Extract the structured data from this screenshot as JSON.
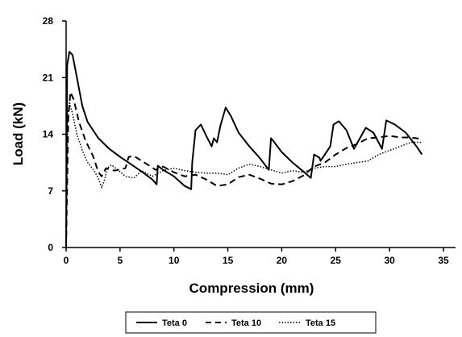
{
  "chart_data": {
    "type": "line",
    "xlabel": "Compression (mm)",
    "ylabel": "Load (kN)",
    "xlim": [
      0,
      35
    ],
    "ylim": [
      0,
      28
    ],
    "xticks": [
      0,
      5,
      10,
      15,
      20,
      25,
      30,
      35
    ],
    "yticks": [
      0,
      7,
      14,
      21,
      28
    ],
    "grid": false,
    "legend_position": "bottom",
    "series": [
      {
        "name": "Teta 0",
        "style": "solid",
        "color": "#000000",
        "points": [
          [
            0,
            0
          ],
          [
            0.1,
            22.5
          ],
          [
            0.3,
            24.2
          ],
          [
            0.6,
            23.8
          ],
          [
            1,
            21
          ],
          [
            1.5,
            17.5
          ],
          [
            2,
            15.5
          ],
          [
            3,
            13.5
          ],
          [
            4,
            12.2
          ],
          [
            5,
            11.2
          ],
          [
            6,
            10.3
          ],
          [
            7,
            9.4
          ],
          [
            8,
            8.4
          ],
          [
            8.4,
            7.8
          ],
          [
            8.5,
            10.1
          ],
          [
            9,
            9.6
          ],
          [
            10,
            8.8
          ],
          [
            11,
            7.6
          ],
          [
            11.6,
            7.2
          ],
          [
            11.7,
            10.5
          ],
          [
            12,
            14.5
          ],
          [
            12.5,
            15.2
          ],
          [
            13,
            13.8
          ],
          [
            13.5,
            12.5
          ],
          [
            13.7,
            13.5
          ],
          [
            14,
            13
          ],
          [
            14.3,
            15
          ],
          [
            14.8,
            17.3
          ],
          [
            15.3,
            16.2
          ],
          [
            16,
            14.2
          ],
          [
            17,
            12.5
          ],
          [
            18,
            11
          ],
          [
            18.8,
            9.6
          ],
          [
            19,
            13.5
          ],
          [
            19.2,
            13.2
          ],
          [
            20,
            11.8
          ],
          [
            21,
            10.5
          ],
          [
            22,
            9.4
          ],
          [
            22.7,
            8.6
          ],
          [
            23,
            11.5
          ],
          [
            23.5,
            11.1
          ],
          [
            23.6,
            10.7
          ],
          [
            24.5,
            12.5
          ],
          [
            24.8,
            15.2
          ],
          [
            25.3,
            15.6
          ],
          [
            26,
            14.5
          ],
          [
            26.7,
            12.2
          ],
          [
            27.8,
            14.8
          ],
          [
            28.5,
            14.2
          ],
          [
            29.3,
            12.2
          ],
          [
            29.7,
            15.7
          ],
          [
            30.5,
            15.2
          ],
          [
            31.5,
            14.2
          ],
          [
            32.5,
            12.5
          ],
          [
            33,
            11.5
          ]
        ]
      },
      {
        "name": "Teta 10",
        "style": "dashed",
        "color": "#000000",
        "points": [
          [
            0,
            0
          ],
          [
            0.2,
            16
          ],
          [
            0.4,
            19.2
          ],
          [
            0.7,
            18.3
          ],
          [
            1.2,
            15.5
          ],
          [
            1.8,
            13.2
          ],
          [
            2.5,
            11.3
          ],
          [
            3,
            9.3
          ],
          [
            3.3,
            8.8
          ],
          [
            3.7,
            9.8
          ],
          [
            4.5,
            9.5
          ],
          [
            5.5,
            9.8
          ],
          [
            5.8,
            11.2
          ],
          [
            6.3,
            11.3
          ],
          [
            7.5,
            10.3
          ],
          [
            8.3,
            9.6
          ],
          [
            9,
            10
          ],
          [
            10,
            9.3
          ],
          [
            11,
            8.8
          ],
          [
            12,
            9
          ],
          [
            13,
            8.4
          ],
          [
            14,
            7.6
          ],
          [
            15,
            7.8
          ],
          [
            16,
            8.7
          ],
          [
            17,
            9
          ],
          [
            18,
            8.5
          ],
          [
            19,
            7.9
          ],
          [
            20,
            7.8
          ],
          [
            21,
            8.2
          ],
          [
            22,
            8.9
          ],
          [
            23,
            10
          ],
          [
            24,
            10.5
          ],
          [
            25,
            11.5
          ],
          [
            26,
            12.3
          ],
          [
            27,
            12.8
          ],
          [
            28,
            13.5
          ],
          [
            29,
            13.6
          ],
          [
            30,
            13.8
          ],
          [
            31,
            13.6
          ],
          [
            32,
            13.6
          ],
          [
            33,
            13.4
          ]
        ]
      },
      {
        "name": "Teta 15",
        "style": "dotted",
        "color": "#000000",
        "points": [
          [
            0,
            0
          ],
          [
            0.15,
            16
          ],
          [
            0.3,
            18
          ],
          [
            0.6,
            16.5
          ],
          [
            1,
            14
          ],
          [
            1.5,
            12
          ],
          [
            2,
            10.5
          ],
          [
            2.6,
            9.5
          ],
          [
            3,
            8.5
          ],
          [
            3.3,
            7.4
          ],
          [
            3.6,
            8.5
          ],
          [
            3.8,
            9.8
          ],
          [
            4.2,
            10.2
          ],
          [
            4.8,
            9.6
          ],
          [
            5.5,
            8.8
          ],
          [
            6.3,
            8.6
          ],
          [
            7,
            9.5
          ],
          [
            8,
            8.8
          ],
          [
            9,
            9.5
          ],
          [
            10,
            9.8
          ],
          [
            11,
            9.5
          ],
          [
            12,
            9.3
          ],
          [
            13,
            9.2
          ],
          [
            14,
            9.2
          ],
          [
            15,
            9
          ],
          [
            16,
            9.8
          ],
          [
            17,
            10.3
          ],
          [
            18,
            10
          ],
          [
            19,
            9.6
          ],
          [
            20,
            9.2
          ],
          [
            21,
            9.5
          ],
          [
            22,
            9.3
          ],
          [
            23,
            9.8
          ],
          [
            24,
            10
          ],
          [
            25,
            10
          ],
          [
            26,
            10.3
          ],
          [
            27,
            10.5
          ],
          [
            28,
            10.7
          ],
          [
            29,
            11.5
          ],
          [
            30,
            12
          ],
          [
            31,
            12.5
          ],
          [
            32,
            13
          ],
          [
            33,
            13
          ]
        ]
      }
    ]
  }
}
